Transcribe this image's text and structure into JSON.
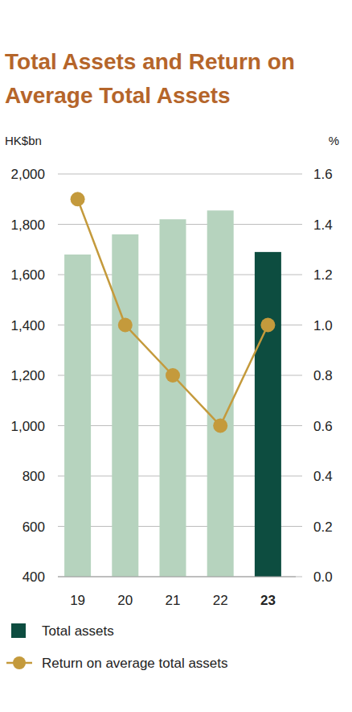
{
  "chart_data": {
    "type": "bar",
    "title": "Total Assets and Return on Average Total Assets",
    "y_label": "HK$bn",
    "y2_label": "%",
    "categories": [
      "19",
      "20",
      "21",
      "22",
      "23"
    ],
    "series": [
      {
        "name": "Total assets",
        "type": "bar",
        "color": "#0d4d40",
        "colors": [
          "#b6d3be",
          "#b6d3be",
          "#b6d3be",
          "#b6d3be",
          "#0d4d40"
        ],
        "values": [
          1680,
          1760,
          1820,
          1855,
          1690
        ]
      },
      {
        "name": "Return on average total assets",
        "type": "line",
        "axis": "y2",
        "color": "#c49a3c",
        "marker": "circle",
        "values": [
          1.5,
          1.0,
          0.8,
          0.6,
          1.0
        ]
      }
    ],
    "ylim": [
      400,
      2000
    ],
    "yticks": [
      400,
      600,
      800,
      {
        "value": 1000,
        "label": "1,000"
      },
      {
        "value": 1200,
        "label": "1,200"
      },
      {
        "value": 1400,
        "label": "1,400"
      },
      {
        "value": 1600,
        "label": "1,600"
      },
      {
        "value": 1800,
        "label": "1,800"
      },
      {
        "value": 2000,
        "label": "2,000"
      }
    ],
    "y2lim": [
      0,
      1.6
    ],
    "y2ticks": [
      {
        "value": 0,
        "label": "0.0"
      },
      0.2,
      0.4,
      0.6,
      0.8,
      {
        "value": 1,
        "label": "1.0"
      },
      1.2,
      1.4,
      1.6
    ],
    "grid": true,
    "legend": "bottom"
  }
}
